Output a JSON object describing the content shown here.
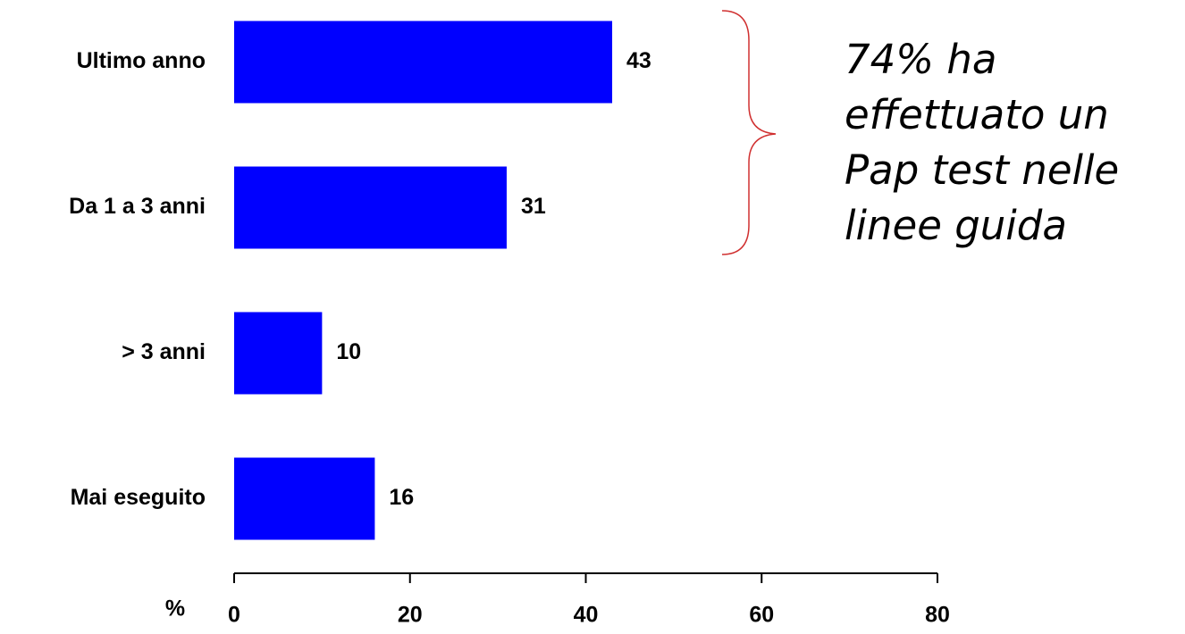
{
  "chart_data": {
    "type": "bar",
    "categories": [
      "Ultimo anno",
      "Da 1 a 3 anni",
      "> 3 anni",
      "Mai eseguito"
    ],
    "values": [
      43,
      31,
      10,
      16
    ],
    "color": "#0000ff",
    "x_label": "%",
    "xlim": [
      0,
      80
    ],
    "xticks": [
      0,
      20,
      40,
      60,
      80
    ],
    "annotation": [
      "74% ha",
      "effettuato un",
      "Pap test nelle",
      "linee guida"
    ]
  }
}
